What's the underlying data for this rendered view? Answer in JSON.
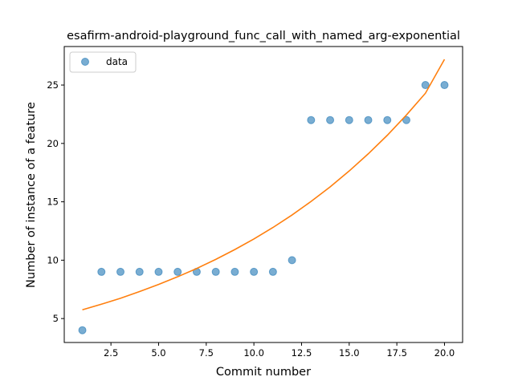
{
  "chart_data": {
    "type": "scatter",
    "title": "esafirm-android-playground_func_call_with_named_arg-exponential",
    "xlabel": "Commit number",
    "ylabel": "Number of instance of a feature",
    "xlim": [
      0.05,
      20.95
    ],
    "ylim": [
      2.95,
      28.3
    ],
    "x_ticks": [
      2.5,
      5.0,
      7.5,
      10.0,
      12.5,
      15.0,
      17.5,
      20.0
    ],
    "x_tick_labels": [
      "2.5",
      "5.0",
      "7.5",
      "10.0",
      "12.5",
      "15.0",
      "17.5",
      "20.0"
    ],
    "y_ticks": [
      5,
      10,
      15,
      20,
      25
    ],
    "y_tick_labels": [
      "5",
      "10",
      "15",
      "20",
      "25"
    ],
    "grid": false,
    "legend": {
      "position": "top-left",
      "entries": [
        "data"
      ]
    },
    "series": [
      {
        "name": "data",
        "kind": "scatter",
        "color": "#1f77b4",
        "x": [
          1,
          2,
          3,
          4,
          5,
          6,
          7,
          8,
          9,
          10,
          11,
          12,
          13,
          14,
          15,
          16,
          17,
          18,
          19,
          20
        ],
        "y": [
          4,
          9,
          9,
          9,
          9,
          9,
          9,
          9,
          9,
          9,
          9,
          10,
          22,
          22,
          22,
          22,
          22,
          22,
          25,
          25
        ]
      },
      {
        "kind": "line",
        "color": "#ff7f0e",
        "x": [
          1,
          2,
          3,
          4,
          5,
          6,
          7,
          8,
          9,
          10,
          11,
          12,
          13,
          14,
          15,
          16,
          17,
          18,
          19,
          20
        ],
        "y": [
          5.75,
          6.23,
          6.74,
          7.31,
          7.92,
          8.58,
          9.29,
          10.07,
          10.91,
          11.82,
          12.8,
          13.87,
          15.03,
          16.28,
          17.64,
          19.11,
          20.7,
          22.43,
          24.3,
          27.2
        ]
      }
    ]
  }
}
